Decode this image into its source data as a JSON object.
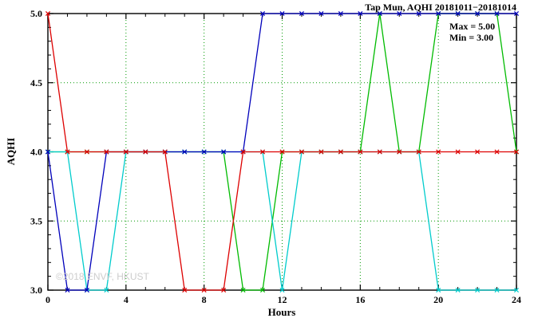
{
  "title": "Tap Mun, AQHI 20181011−20181014",
  "annotations": {
    "max": "Max = 5.00",
    "min": "Min = 3.00"
  },
  "watermark": "©2018 ENVF, HKUST",
  "chart_data": {
    "type": "line",
    "title": "Tap Mun, AQHI 20181011−20181014",
    "xlabel": "Hours",
    "ylabel": "AQHI",
    "xlim": [
      0,
      24
    ],
    "ylim": [
      3.0,
      5.0
    ],
    "x_ticks": [
      0,
      4,
      8,
      12,
      16,
      20,
      24
    ],
    "x_tick_labels": [
      "0",
      "4",
      "8",
      "12",
      "16",
      "20",
      "24"
    ],
    "y_ticks": [
      3.0,
      3.5,
      4.0,
      4.5,
      5.0
    ],
    "y_tick_labels": [
      "3.0",
      "3.5",
      "4.0",
      "4.5",
      "5.0"
    ],
    "grid": "dotted",
    "legend": "none",
    "marker": "x",
    "max_value": 5.0,
    "min_value": 3.0,
    "colors": {
      "grid": "#009900",
      "axis": "#000000",
      "background": "#ffffff"
    },
    "x": [
      0,
      1,
      2,
      3,
      4,
      5,
      6,
      7,
      8,
      9,
      10,
      11,
      12,
      13,
      14,
      15,
      16,
      17,
      18,
      19,
      20,
      21,
      22,
      23,
      24
    ],
    "series": [
      {
        "name": "red",
        "color": "#dd0000",
        "values": [
          5,
          4,
          4,
          4,
          4,
          4,
          4,
          3,
          3,
          3,
          4,
          4,
          4,
          4,
          4,
          4,
          4,
          4,
          4,
          4,
          4,
          4,
          4,
          4,
          4
        ]
      },
      {
        "name": "blue",
        "color": "#0000bb",
        "values": [
          4,
          3,
          3,
          4,
          4,
          4,
          4,
          4,
          4,
          4,
          4,
          5,
          5,
          5,
          5,
          5,
          5,
          5,
          5,
          5,
          5,
          5,
          5,
          5,
          5
        ]
      },
      {
        "name": "cyan",
        "color": "#00cccc",
        "values": [
          4,
          4,
          3,
          3,
          4,
          4,
          4,
          4,
          4,
          4,
          4,
          4,
          3,
          4,
          4,
          4,
          4,
          4,
          4,
          4,
          3,
          3,
          3,
          3,
          3
        ]
      },
      {
        "name": "green",
        "color": "#00bb00",
        "values": [
          4,
          4,
          4,
          4,
          4,
          4,
          4,
          4,
          4,
          4,
          3,
          3,
          4,
          4,
          4,
          4,
          4,
          5,
          4,
          4,
          5,
          5,
          5,
          5,
          4
        ]
      }
    ]
  }
}
